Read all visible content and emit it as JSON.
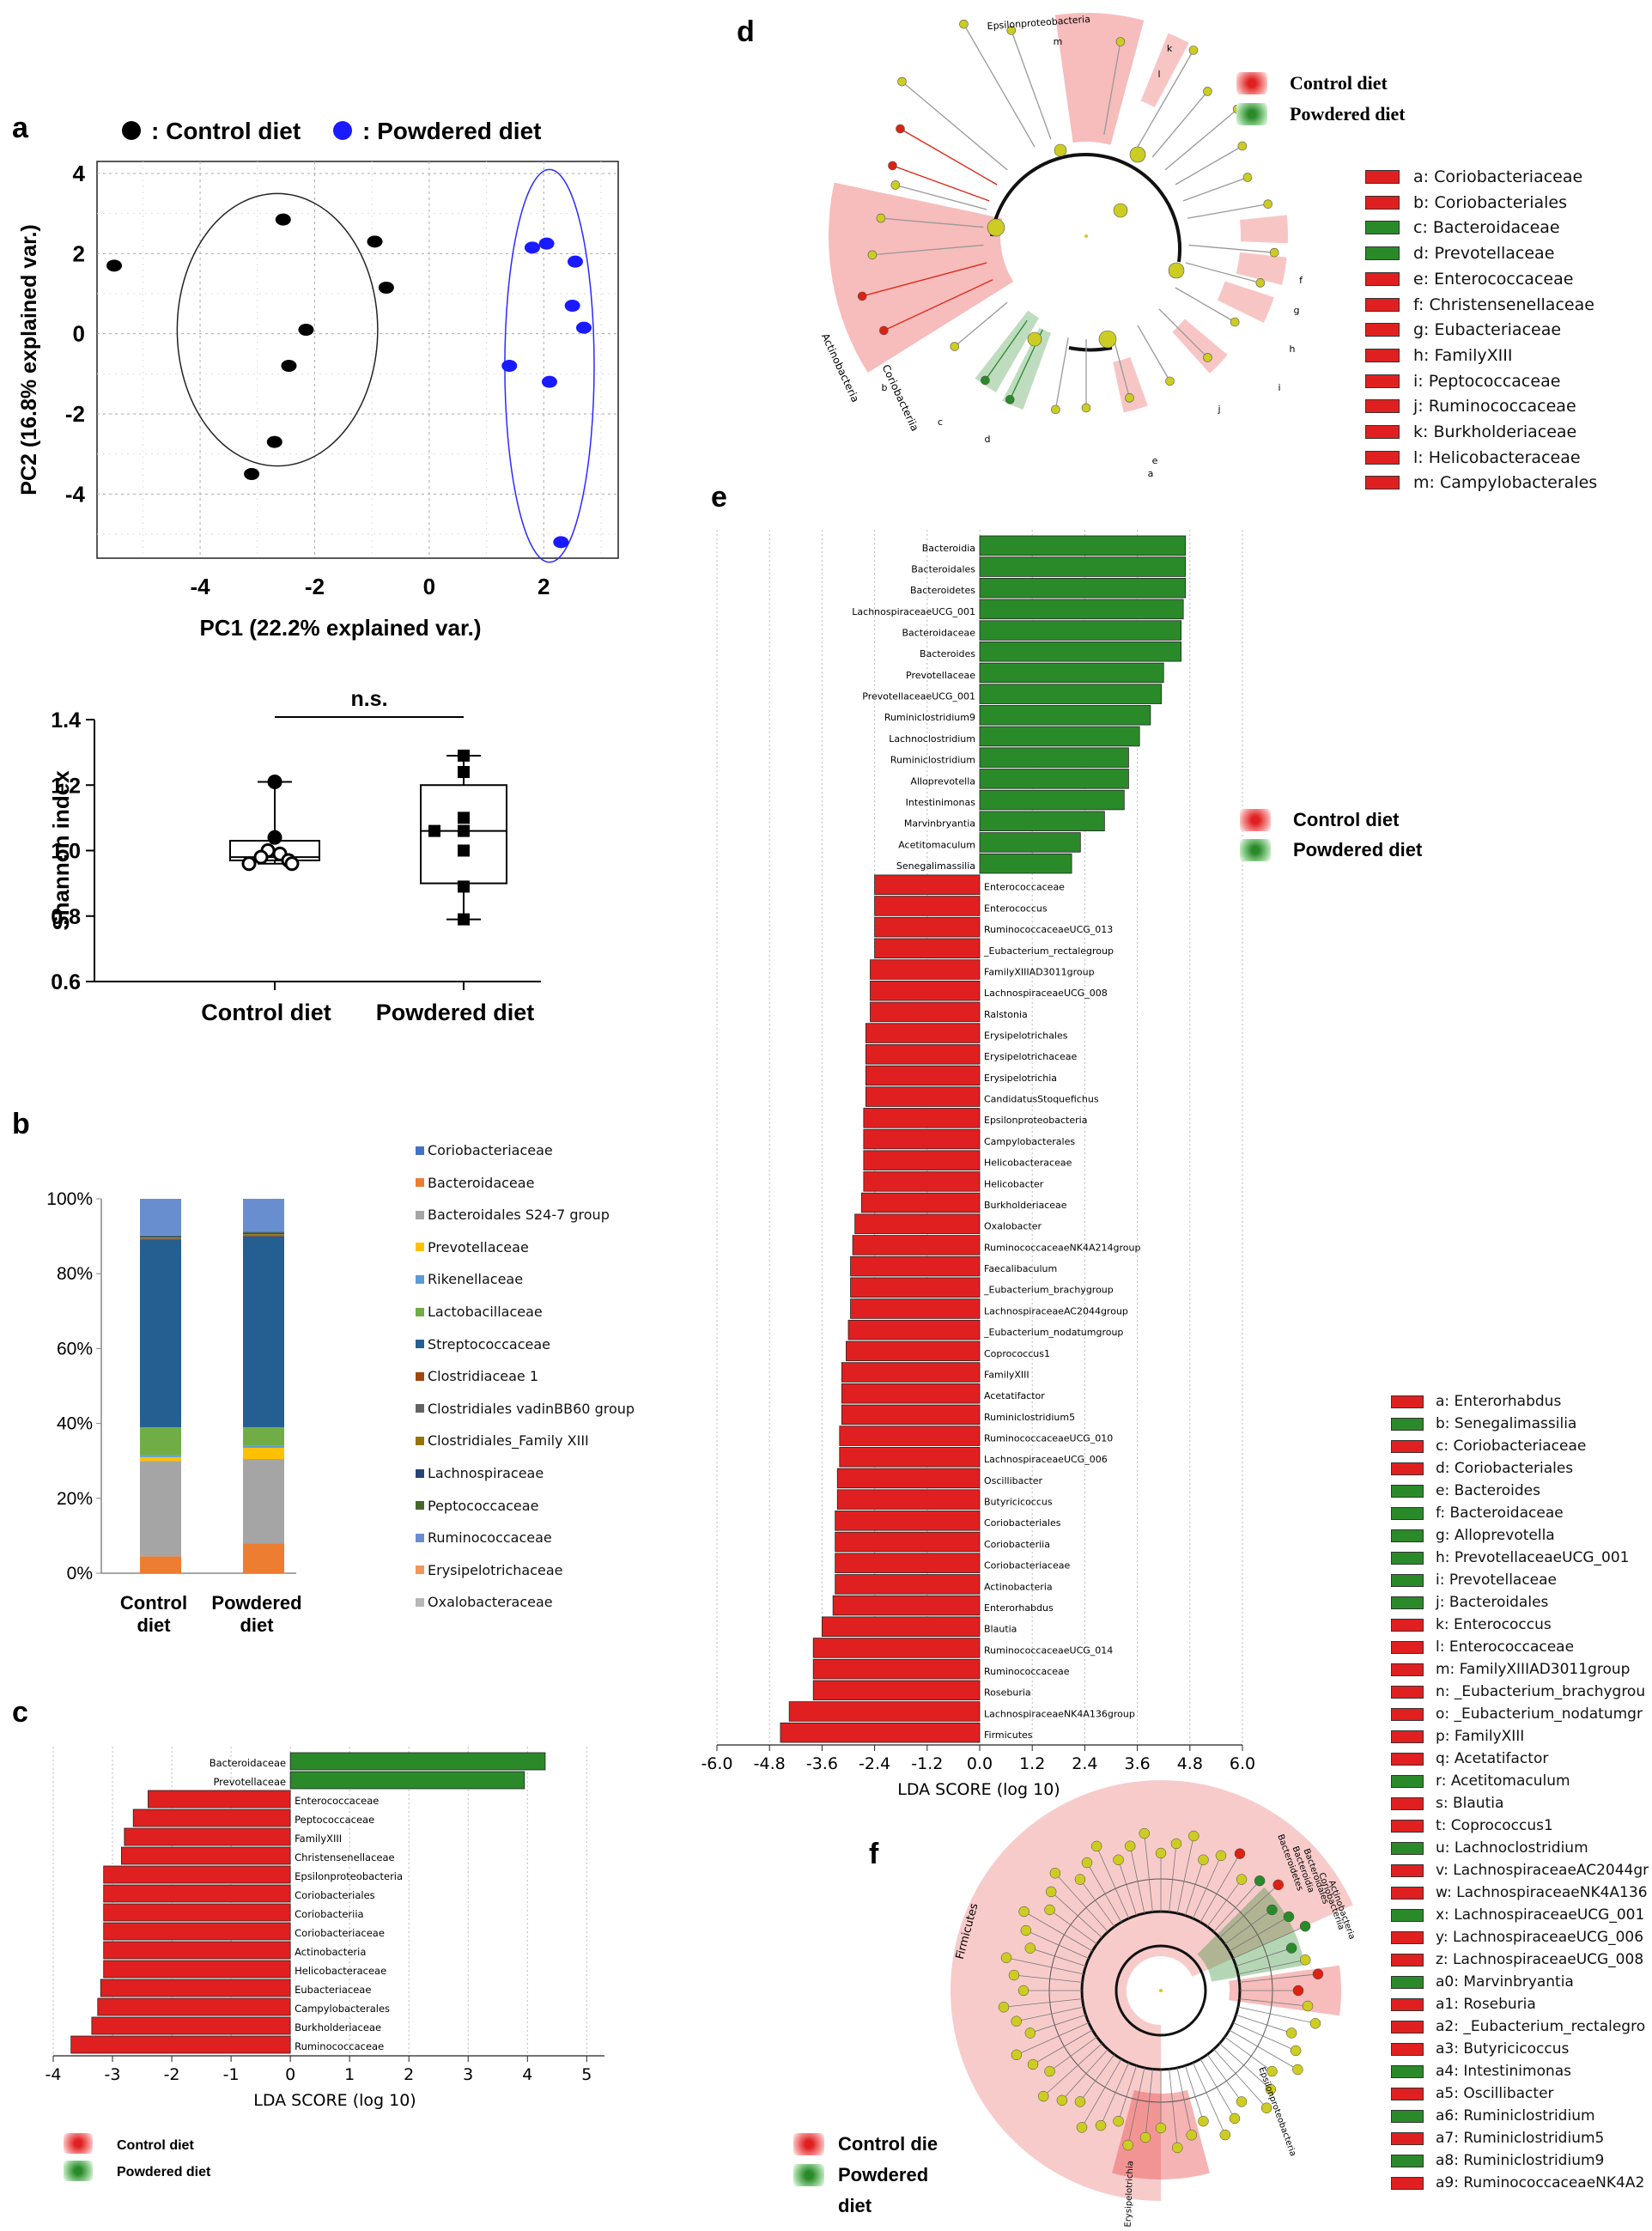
{
  "panels": {
    "a": "a",
    "b": "b",
    "c": "c",
    "d": "d",
    "e": "e",
    "f": "f"
  },
  "colors": {
    "control": "#e02020",
    "powdered": "#2a8a2a",
    "pca_control": "#000000",
    "pca_powdered": "#1a1aff",
    "tree_node": "#cccc22"
  },
  "legend_pca": {
    "control": ": Control diet",
    "powdered": ": Powdered diet"
  },
  "legend_diet": {
    "control": "Control diet",
    "powdered": "Powdered diet"
  },
  "legend_c": {
    "control": "Control  diet",
    "powdered": "Powdered diet"
  },
  "legend_f": {
    "control": "Control die",
    "powdered": "Powdered",
    "powdered2": "diet"
  },
  "chart_data": [
    {
      "id": "a-pca",
      "type": "scatter",
      "xlabel": "PC1 (22.2% explained  var.)",
      "ylabel": "PC2 (16.8% explained var.)",
      "xlim": [
        -5.8,
        3.3
      ],
      "ylim": [
        -5.6,
        4.3
      ],
      "xticks": [
        -4,
        -2,
        0,
        2
      ],
      "yticks": [
        4,
        2,
        0,
        -2,
        -4
      ],
      "grid": true,
      "series": [
        {
          "name": "Control diet",
          "points": [
            [
              -5.5,
              1.7
            ],
            [
              -2.55,
              2.85
            ],
            [
              -0.95,
              2.3
            ],
            [
              -0.75,
              1.15
            ],
            [
              -2.15,
              0.1
            ],
            [
              -2.45,
              -0.8
            ],
            [
              -2.7,
              -2.7
            ],
            [
              -3.1,
              -3.5
            ]
          ]
        },
        {
          "name": "Powdered diet",
          "points": [
            [
              1.8,
              2.15
            ],
            [
              2.05,
              2.25
            ],
            [
              2.55,
              1.8
            ],
            [
              2.5,
              0.7
            ],
            [
              2.7,
              0.15
            ],
            [
              1.4,
              -0.8
            ],
            [
              2.1,
              -1.2
            ],
            [
              2.3,
              -5.2
            ]
          ]
        }
      ]
    },
    {
      "id": "a-shannon",
      "type": "box",
      "ylabel": "Shannon index",
      "ylim": [
        0.6,
        1.4
      ],
      "yticks": [
        "1.4",
        "1.2",
        "1.0",
        "0.8",
        "0.6"
      ],
      "categories": [
        "Control diet",
        "Powdered diet"
      ],
      "annotation": "n.s.",
      "boxes": [
        {
          "min": 0.96,
          "q1": 0.97,
          "median": 0.98,
          "q3": 1.03,
          "max": 1.21,
          "points": [
            1.21,
            1.04,
            1.0,
            0.99,
            0.98,
            0.97,
            0.96,
            0.96
          ]
        },
        {
          "min": 0.79,
          "q1": 0.9,
          "median": 1.06,
          "q3": 1.2,
          "max": 1.29,
          "points": [
            1.29,
            1.24,
            1.1,
            1.06,
            1.06,
            1.0,
            0.89,
            0.79
          ]
        }
      ]
    },
    {
      "id": "b-stacked",
      "type": "bar",
      "stacked": true,
      "categories": [
        "Control\ndiet",
        "Powdered\ndiet"
      ],
      "yticks": [
        "100%",
        "80%",
        "60%",
        "40%",
        "20%",
        "0%"
      ],
      "series": [
        {
          "name": "Coriobacteriaceae",
          "color": "#4472c4",
          "values": [
            0.0,
            0.0
          ]
        },
        {
          "name": "Bacteroidaceae",
          "color": "#ed7d31",
          "values": [
            4.5,
            8.0
          ]
        },
        {
          "name": "Bacteroidales S24-7 group",
          "color": "#a5a5a5",
          "values": [
            25.5,
            22.5
          ]
        },
        {
          "name": "Prevotellaceae",
          "color": "#ffc000",
          "values": [
            1.0,
            3.0
          ]
        },
        {
          "name": "Rikenellaceae",
          "color": "#5b9bd5",
          "values": [
            0.5,
            0.5
          ]
        },
        {
          "name": "Lactobacillaceae",
          "color": "#70ad47",
          "values": [
            7.5,
            5.0
          ]
        },
        {
          "name": "Streptococcaceae",
          "color": "#255e91",
          "values": [
            50.0,
            51.0
          ]
        },
        {
          "name": "Clostridiaceae 1",
          "color": "#9e480e",
          "values": [
            0.3,
            0.2
          ]
        },
        {
          "name": "Clostridiales vadinBB60 group",
          "color": "#636363",
          "values": [
            0.2,
            0.2
          ]
        },
        {
          "name": "Clostridiales_Family XIII",
          "color": "#997300",
          "values": [
            0.2,
            0.2
          ]
        },
        {
          "name": "Lachnospiraceae",
          "color": "#264478",
          "values": [
            0.3,
            0.4
          ]
        },
        {
          "name": "Peptococcaceae",
          "color": "#43682b",
          "values": [
            0.2,
            0.2
          ]
        },
        {
          "name": "Ruminococcaceae",
          "color": "#698ed0",
          "values": [
            9.8,
            8.8
          ]
        },
        {
          "name": "Erysipelotrichaceae",
          "color": "#f1975a",
          "values": [
            0.0,
            0.0
          ]
        },
        {
          "name": "Oxalobacteraceae",
          "color": "#b7b7b7",
          "values": [
            0.0,
            0.0
          ]
        }
      ]
    },
    {
      "id": "c-lda",
      "type": "bar",
      "orientation": "horizontal",
      "xlabel": "LDA SCORE (log 10)",
      "xlim": [
        -4,
        5.3
      ],
      "xticks": [
        -4,
        -3,
        -2,
        -1,
        0,
        1,
        2,
        3,
        4,
        5
      ],
      "grid": true,
      "categories": [
        "Bacteroidaceae",
        "Prevotellaceae",
        "Enterococcaceae",
        "Peptococcaceae",
        "FamilyXIII",
        "Christensenellaceae",
        "Epsilonproteobacteria",
        "Coriobacteriales",
        "Coriobacteriia",
        "Coriobacteriaceae",
        "Actinobacteria",
        "Helicobacteraceae",
        "Eubacteriaceae",
        "Campylobacterales",
        "Burkholderiaceae",
        "Ruminococcaceae"
      ],
      "values": [
        4.3,
        3.95,
        -2.4,
        -2.65,
        -2.8,
        -2.85,
        -3.15,
        -3.15,
        -3.15,
        -3.15,
        -3.15,
        -3.15,
        -3.2,
        -3.25,
        -3.35,
        -3.7
      ]
    },
    {
      "id": "e-lda",
      "type": "bar",
      "orientation": "horizontal",
      "xlabel": "LDA SCORE (log 10)",
      "xlim": [
        -6.0,
        6.0
      ],
      "xticks": [
        "-6.0",
        "-4.8",
        "-3.6",
        "-2.4",
        "-1.2",
        "0.0",
        "1.2",
        "2.4",
        "3.6",
        "4.8",
        "6.0"
      ],
      "grid": true,
      "categories": [
        "Bacteroidia",
        "Bacteroidales",
        "Bacteroidetes",
        "LachnospiraceaeUCG_001",
        "Bacteroidaceae",
        "Bacteroides",
        "Prevotellaceae",
        "PrevotellaceaeUCG_001",
        "Ruminiclostridium9",
        "Lachnoclostridium",
        "Ruminiclostridium",
        "Alloprevotella",
        "Intestinimonas",
        "Marvinbryantia",
        "Acetitomaculum",
        "Senegalimassilia",
        "Enterococcaceae",
        "Enterococcus",
        "RuminococcaceaeUCG_013",
        "_Eubacterium_rectalegroup",
        "FamilyXIIIAD3011group",
        "LachnospiraceaeUCG_008",
        "Ralstonia",
        "Erysipelotrichales",
        "Erysipelotrichaceae",
        "Erysipelotrichia",
        "CandidatusStoquefichus",
        "Epsilonproteobacteria",
        "Campylobacterales",
        "Helicobacteraceae",
        "Helicobacter",
        "Burkholderiaceae",
        "Oxalobacter",
        "RuminococcaceaeNK4A214group",
        "Faecalibaculum",
        "_Eubacterium_brachygroup",
        "LachnospiraceaeAC2044group",
        "_Eubacterium_nodatumgroup",
        "Coprococcus1",
        "FamilyXIII",
        "Acetatifactor",
        "Ruminiclostridium5",
        "RuminococcaceaeUCG_010",
        "LachnospiraceaeUCG_006",
        "Oscillibacter",
        "Butyricicoccus",
        "Coriobacteriales",
        "Coriobacteriia",
        "Coriobacteriaceae",
        "Actinobacteria",
        "Enterorhabdus",
        "Blautia",
        "RuminococcaceaeUCG_014",
        "Ruminococcaceae",
        "Roseburia",
        "LachnospiraceaeNK4A136group",
        "Firmicutes"
      ],
      "values": [
        4.7,
        4.7,
        4.7,
        4.65,
        4.6,
        4.6,
        4.2,
        4.15,
        3.9,
        3.65,
        3.4,
        3.4,
        3.3,
        2.85,
        2.3,
        2.1,
        -2.4,
        -2.4,
        -2.4,
        -2.4,
        -2.5,
        -2.5,
        -2.5,
        -2.6,
        -2.6,
        -2.6,
        -2.6,
        -2.65,
        -2.65,
        -2.65,
        -2.65,
        -2.7,
        -2.85,
        -2.9,
        -2.95,
        -2.95,
        -2.95,
        -3.0,
        -3.05,
        -3.15,
        -3.15,
        -3.15,
        -3.2,
        -3.2,
        -3.25,
        -3.25,
        -3.3,
        -3.3,
        -3.3,
        -3.3,
        -3.35,
        -3.6,
        -3.8,
        -3.8,
        -3.8,
        -4.35,
        -4.55
      ]
    }
  ],
  "tree_d": {
    "title_label": "Epsilonproteobacteria",
    "clade_labels": [
      "Actinobacteria",
      "Coriobacteriia",
      "m",
      "l",
      "k",
      "a",
      "b",
      "c",
      "d",
      "e",
      "f",
      "g",
      "h",
      "i",
      "j"
    ],
    "key": [
      {
        "text": "a: Coriobacteriaceae",
        "group": "control"
      },
      {
        "text": "b: Coriobacteriales",
        "group": "control"
      },
      {
        "text": "c: Bacteroidaceae",
        "group": "powdered"
      },
      {
        "text": "d: Prevotellaceae",
        "group": "powdered"
      },
      {
        "text": "e: Enterococcaceae",
        "group": "control"
      },
      {
        "text": "f: Christensenellaceae",
        "group": "control"
      },
      {
        "text": "g: Eubacteriaceae",
        "group": "control"
      },
      {
        "text": "h: FamilyXIII",
        "group": "control"
      },
      {
        "text": "i: Peptococcaceae",
        "group": "control"
      },
      {
        "text": "j: Ruminococcaceae",
        "group": "control"
      },
      {
        "text": "k: Burkholderiaceae",
        "group": "control"
      },
      {
        "text": "l: Helicobacteraceae",
        "group": "control"
      },
      {
        "text": "m: Campylobacterales",
        "group": "control"
      }
    ]
  },
  "tree_f": {
    "clade_labels": [
      "Firmicutes",
      "Bacteroidetes",
      "Bacteroidia",
      "Bacteroidales",
      "Actinobacteria",
      "Coriobacteriia",
      "Erysipelotrichia",
      "Epsilonproteobacteria"
    ],
    "key": [
      {
        "text": "a: Enterorhabdus",
        "group": "control"
      },
      {
        "text": "b: Senegalimassilia",
        "group": "powdered"
      },
      {
        "text": "c: Coriobacteriaceae",
        "group": "control"
      },
      {
        "text": "d: Coriobacteriales",
        "group": "control"
      },
      {
        "text": "e: Bacteroides",
        "group": "powdered"
      },
      {
        "text": "f: Bacteroidaceae",
        "group": "powdered"
      },
      {
        "text": "g: Alloprevotella",
        "group": "powdered"
      },
      {
        "text": "h: PrevotellaceaeUCG_001",
        "group": "powdered"
      },
      {
        "text": "i: Prevotellaceae",
        "group": "powdered"
      },
      {
        "text": "j: Bacteroidales",
        "group": "powdered"
      },
      {
        "text": "k: Enterococcus",
        "group": "control"
      },
      {
        "text": "l: Enterococcaceae",
        "group": "control"
      },
      {
        "text": "m: FamilyXIIIAD3011group",
        "group": "control"
      },
      {
        "text": "n: _Eubacterium_brachygrou",
        "group": "control"
      },
      {
        "text": "o: _Eubacterium_nodatumgr",
        "group": "control"
      },
      {
        "text": "p: FamilyXIII",
        "group": "control"
      },
      {
        "text": "q: Acetatifactor",
        "group": "control"
      },
      {
        "text": "r: Acetitomaculum",
        "group": "powdered"
      },
      {
        "text": "s: Blautia",
        "group": "control"
      },
      {
        "text": "t: Coprococcus1",
        "group": "control"
      },
      {
        "text": "u: Lachnoclostridium",
        "group": "powdered"
      },
      {
        "text": "v: LachnospiraceaeAC2044gr",
        "group": "control"
      },
      {
        "text": "w: LachnospiraceaeNK4A136",
        "group": "control"
      },
      {
        "text": "x: LachnospiraceaeUCG_001",
        "group": "powdered"
      },
      {
        "text": "y: LachnospiraceaeUCG_006",
        "group": "control"
      },
      {
        "text": "z: LachnospiraceaeUCG_008",
        "group": "control"
      },
      {
        "text": "a0: Marvinbryantia",
        "group": "powdered"
      },
      {
        "text": "a1: Roseburia",
        "group": "control"
      },
      {
        "text": "a2: _Eubacterium_rectalegro",
        "group": "control"
      },
      {
        "text": "a3: Butyricicoccus",
        "group": "control"
      },
      {
        "text": "a4: Intestinimonas",
        "group": "powdered"
      },
      {
        "text": "a5: Oscillibacter",
        "group": "control"
      },
      {
        "text": "a6: Ruminiclostridium",
        "group": "powdered"
      },
      {
        "text": "a7: Ruminiclostridium5",
        "group": "control"
      },
      {
        "text": "a8: Ruminiclostridium9",
        "group": "powdered"
      },
      {
        "text": "a9: RuminococcaceaeNK4A2",
        "group": "control"
      }
    ]
  }
}
